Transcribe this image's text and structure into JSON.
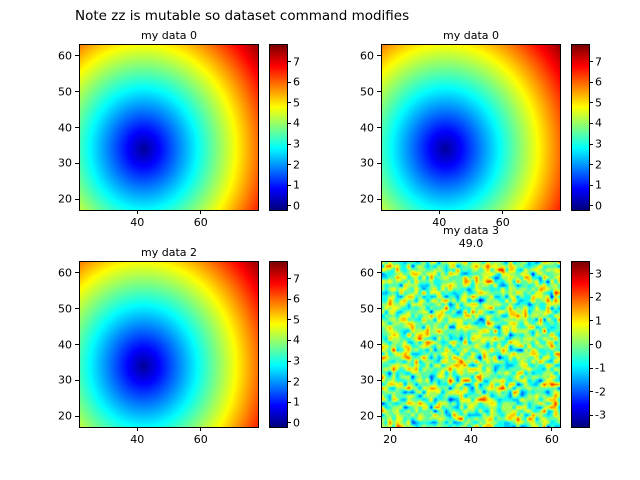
{
  "suptitle": "Note zz is mutable so dataset command modifies",
  "chart_data": {
    "type": "heatmap",
    "colormap": "jet",
    "grid": false,
    "subplots": [
      {
        "title": "my data 0",
        "subtitle": "",
        "field": "radial",
        "xlim": [
          22,
          78
        ],
        "ylim": [
          17,
          63
        ],
        "xticks": [
          40,
          60
        ],
        "yticks": [
          20,
          30,
          40,
          50,
          60
        ],
        "center": [
          42,
          34
        ],
        "slope": 0.165,
        "vmin": -0.2,
        "vmax": 7.8,
        "cbar_ticks": [
          0,
          1,
          2,
          3,
          4,
          5,
          6,
          7
        ]
      },
      {
        "title": "my data 0",
        "subtitle": "",
        "field": "radial",
        "xlim": [
          22,
          78
        ],
        "ylim": [
          17,
          63
        ],
        "xticks": [
          40,
          60
        ],
        "yticks": [
          20,
          30,
          40,
          50,
          60
        ],
        "center": [
          42,
          34
        ],
        "slope": 0.165,
        "vmin": -0.2,
        "vmax": 7.8,
        "cbar_ticks": [
          0,
          1,
          2,
          3,
          4,
          5,
          6,
          7
        ]
      },
      {
        "title": "my data 2",
        "subtitle": "",
        "field": "radial",
        "xlim": [
          22,
          78
        ],
        "ylim": [
          17,
          63
        ],
        "xticks": [
          40,
          60
        ],
        "yticks": [
          20,
          30,
          40,
          50,
          60
        ],
        "center": [
          42,
          34
        ],
        "slope": 0.165,
        "vmin": -0.2,
        "vmax": 7.8,
        "cbar_ticks": [
          0,
          1,
          2,
          3,
          4,
          5,
          6,
          7
        ]
      },
      {
        "title": "my data 3",
        "subtitle": "49.0",
        "field": "noise",
        "xlim": [
          18,
          62
        ],
        "ylim": [
          17,
          63
        ],
        "xticks": [
          20,
          40,
          60
        ],
        "yticks": [
          20,
          30,
          40,
          50,
          60
        ],
        "noise_sigma": 1.0,
        "noise_seed": 42,
        "level_step": 0.5,
        "vmin": -3.5,
        "vmax": 3.5,
        "cbar_ticks": [
          -3,
          -2,
          -1,
          0,
          1,
          2,
          3
        ]
      }
    ]
  }
}
